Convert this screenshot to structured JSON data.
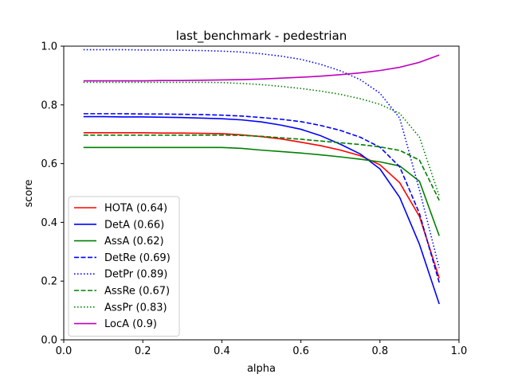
{
  "chart_data": {
    "type": "line",
    "title": "last_benchmark - pedestrian",
    "xlabel": "alpha",
    "ylabel": "score",
    "xlim": [
      0.0,
      1.0
    ],
    "ylim": [
      0.0,
      1.0
    ],
    "xticks": [
      "0.0",
      "0.2",
      "0.4",
      "0.6",
      "0.8",
      "1.0"
    ],
    "yticks": [
      "0.0",
      "0.2",
      "0.4",
      "0.6",
      "0.8",
      "1.0"
    ],
    "grid": false,
    "legend_position": "lower-left",
    "x": [
      0.05,
      0.1,
      0.15,
      0.2,
      0.25,
      0.3,
      0.35,
      0.4,
      0.45,
      0.5,
      0.55,
      0.6,
      0.65,
      0.7,
      0.75,
      0.8,
      0.85,
      0.9,
      0.95
    ],
    "series": [
      {
        "name": "HOTA (0.64)",
        "color": "#ff0000",
        "dash": "solid",
        "values": [
          0.705,
          0.705,
          0.705,
          0.705,
          0.704,
          0.704,
          0.703,
          0.702,
          0.698,
          0.692,
          0.684,
          0.673,
          0.661,
          0.646,
          0.627,
          0.596,
          0.535,
          0.42,
          0.21
        ]
      },
      {
        "name": "DetA (0.66)",
        "color": "#0000ff",
        "dash": "solid",
        "values": [
          0.76,
          0.76,
          0.759,
          0.759,
          0.758,
          0.757,
          0.755,
          0.753,
          0.749,
          0.742,
          0.731,
          0.717,
          0.695,
          0.666,
          0.633,
          0.582,
          0.485,
          0.325,
          0.122
        ]
      },
      {
        "name": "AssA (0.62)",
        "color": "#008000",
        "dash": "solid",
        "values": [
          0.655,
          0.655,
          0.655,
          0.655,
          0.655,
          0.655,
          0.655,
          0.655,
          0.652,
          0.646,
          0.641,
          0.636,
          0.63,
          0.623,
          0.615,
          0.606,
          0.592,
          0.54,
          0.354
        ]
      },
      {
        "name": "DetRe (0.69)",
        "color": "#0000ff",
        "dash": "dashed",
        "values": [
          0.77,
          0.77,
          0.77,
          0.769,
          0.769,
          0.768,
          0.767,
          0.765,
          0.762,
          0.757,
          0.751,
          0.743,
          0.73,
          0.713,
          0.69,
          0.656,
          0.589,
          0.43,
          0.195
        ]
      },
      {
        "name": "DetPr (0.89)",
        "color": "#0000ff",
        "dash": "dotted",
        "values": [
          0.988,
          0.988,
          0.988,
          0.987,
          0.987,
          0.986,
          0.985,
          0.983,
          0.98,
          0.974,
          0.966,
          0.955,
          0.938,
          0.916,
          0.886,
          0.84,
          0.755,
          0.51,
          0.245
        ]
      },
      {
        "name": "AssRe (0.67)",
        "color": "#008000",
        "dash": "dashed",
        "values": [
          0.697,
          0.697,
          0.697,
          0.697,
          0.697,
          0.697,
          0.697,
          0.697,
          0.696,
          0.693,
          0.688,
          0.683,
          0.677,
          0.671,
          0.665,
          0.657,
          0.645,
          0.612,
          0.475
        ]
      },
      {
        "name": "AssPr (0.83)",
        "color": "#008000",
        "dash": "dotted",
        "values": [
          0.877,
          0.877,
          0.877,
          0.877,
          0.877,
          0.877,
          0.877,
          0.876,
          0.873,
          0.869,
          0.863,
          0.856,
          0.847,
          0.836,
          0.821,
          0.802,
          0.771,
          0.69,
          0.49
        ]
      },
      {
        "name": "LocA (0.9)",
        "color": "#bf00bf",
        "dash": "solid",
        "values": [
          0.882,
          0.882,
          0.882,
          0.882,
          0.883,
          0.883,
          0.884,
          0.885,
          0.886,
          0.888,
          0.891,
          0.894,
          0.898,
          0.903,
          0.909,
          0.917,
          0.928,
          0.945,
          0.97
        ]
      }
    ]
  }
}
